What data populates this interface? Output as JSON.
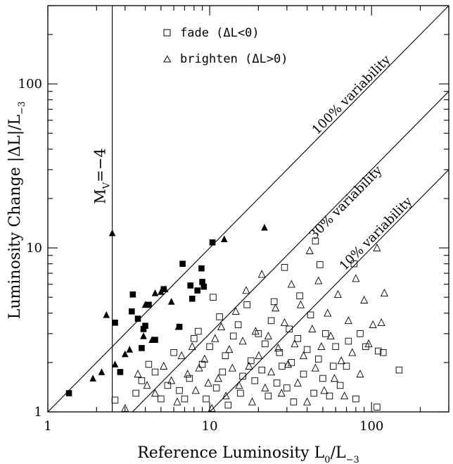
{
  "chart_data": {
    "type": "scatter",
    "xlabel": "Reference Luminosity L",
    "xlabel_sub": "0",
    "xlabel_tail": "/L",
    "xlabel_sub2": "−3",
    "ylabel": "Luminosity Change |ΔL|/L",
    "ylabel_sub": "−3",
    "xscale": "log",
    "yscale": "log",
    "xlim": [
      1,
      300
    ],
    "ylim": [
      1,
      300
    ],
    "x_ticks": [
      {
        "value": 1,
        "label": "1"
      },
      {
        "value": 10,
        "label": "10"
      },
      {
        "value": 100,
        "label": "100"
      }
    ],
    "y_ticks": [
      {
        "value": 1,
        "label": "1"
      },
      {
        "value": 10,
        "label": "10"
      },
      {
        "value": 100,
        "label": "100"
      }
    ],
    "legend": {
      "position": "top",
      "entries": [
        {
          "marker": "square-open",
          "label": "fade (ΔL<0)"
        },
        {
          "marker": "triangle-open",
          "label": "brighten (ΔL>0)"
        }
      ]
    },
    "reference_lines": [
      {
        "fraction": 1.0,
        "label": "100% variability"
      },
      {
        "fraction": 0.3,
        "label": "30% variability"
      },
      {
        "fraction": 0.1,
        "label": "10% variability"
      }
    ],
    "vertical_line": {
      "x": 2.5,
      "label": "M",
      "label_sub": "V",
      "label_tail": "=−4"
    },
    "series": [
      {
        "marker": "square-filled",
        "points": [
          [
            1.35,
            1.3
          ],
          [
            2.6,
            3.5
          ],
          [
            2.8,
            1.75
          ],
          [
            3.3,
            4.1
          ],
          [
            3.35,
            5.2
          ],
          [
            3.6,
            3.7
          ],
          [
            3.8,
            2.45
          ],
          [
            3.9,
            3.2
          ],
          [
            4.0,
            3.35
          ],
          [
            4.2,
            4.5
          ],
          [
            4.6,
            2.75
          ],
          [
            5.2,
            5.6
          ],
          [
            6.5,
            3.3
          ],
          [
            6.8,
            8.0
          ],
          [
            7.6,
            5.9
          ],
          [
            7.8,
            4.9
          ],
          [
            8.4,
            5.5
          ],
          [
            8.9,
            7.5
          ],
          [
            9.0,
            6.2
          ],
          [
            9.2,
            5.8
          ],
          [
            10.4,
            10.8
          ]
        ]
      },
      {
        "marker": "triangle-filled",
        "points": [
          [
            1.9,
            1.6
          ],
          [
            2.15,
            1.75
          ],
          [
            2.3,
            3.9
          ],
          [
            2.5,
            12.3
          ],
          [
            2.6,
            1.95
          ],
          [
            3.0,
            2.25
          ],
          [
            3.2,
            2.4
          ],
          [
            3.9,
            2.9
          ],
          [
            4.0,
            4.5
          ],
          [
            4.4,
            2.75
          ],
          [
            4.6,
            5.3
          ],
          [
            5.0,
            5.4
          ],
          [
            5.3,
            5.6
          ],
          [
            5.8,
            4.7
          ],
          [
            6.4,
            3.3
          ],
          [
            12.3,
            11.3
          ],
          [
            21.8,
            13.3
          ]
        ]
      },
      {
        "marker": "square-open",
        "points": [
          [
            2.6,
            1.18
          ],
          [
            3.5,
            1.3
          ],
          [
            3.8,
            1.55
          ],
          [
            4.2,
            1.95
          ],
          [
            4.6,
            1.75
          ],
          [
            5.0,
            1.2
          ],
          [
            5.5,
            1.45
          ],
          [
            6.0,
            2.3
          ],
          [
            6.5,
            1.35
          ],
          [
            7.0,
            1.2
          ],
          [
            7.5,
            1.6
          ],
          [
            8.0,
            2.8
          ],
          [
            8.5,
            3.1
          ],
          [
            9.0,
            1.95
          ],
          [
            9.5,
            1.2
          ],
          [
            10.0,
            2.5
          ],
          [
            10.5,
            5.0
          ],
          [
            11.0,
            1.4
          ],
          [
            11.5,
            3.8
          ],
          [
            12.0,
            1.75
          ],
          [
            12.5,
            2.2
          ],
          [
            13.0,
            1.1
          ],
          [
            14.0,
            2.9
          ],
          [
            15.0,
            3.4
          ],
          [
            15.5,
            1.3
          ],
          [
            16.0,
            1.65
          ],
          [
            17.0,
            4.5
          ],
          [
            18.0,
            2.05
          ],
          [
            19.0,
            1.55
          ],
          [
            20.0,
            3.0
          ],
          [
            21.0,
            1.8
          ],
          [
            22.0,
            2.6
          ],
          [
            23.0,
            1.25
          ],
          [
            24.0,
            3.6
          ],
          [
            25.0,
            4.7
          ],
          [
            26.0,
            1.5
          ],
          [
            27.0,
            2.3
          ],
          [
            28.0,
            1.9
          ],
          [
            29.0,
            7.6
          ],
          [
            30.0,
            1.4
          ],
          [
            31.0,
            3.2
          ],
          [
            32.0,
            2.0
          ],
          [
            33.0,
            1.15
          ],
          [
            35.0,
            2.8
          ],
          [
            36.0,
            5.1
          ],
          [
            38.0,
            1.7
          ],
          [
            40.0,
            2.4
          ],
          [
            42.0,
            3.9
          ],
          [
            44.0,
            1.3
          ],
          [
            45.0,
            11.0
          ],
          [
            47.0,
            2.1
          ],
          [
            48.0,
            7.9
          ],
          [
            50.0,
            1.6
          ],
          [
            52.0,
            3.0
          ],
          [
            55.0,
            1.25
          ],
          [
            58.0,
            1.9
          ],
          [
            60.0,
            2.5
          ],
          [
            64.0,
            1.45
          ],
          [
            70.0,
            1.9
          ],
          [
            72.0,
            2.7
          ],
          [
            78.0,
            8.0
          ],
          [
            80.0,
            1.2
          ],
          [
            85.0,
            3.0
          ],
          [
            92.0,
            2.5
          ],
          [
            110.0,
            2.35
          ],
          [
            118.0,
            2.3
          ],
          [
            148.0,
            1.8
          ],
          [
            108.0,
            1.07
          ]
        ]
      },
      {
        "marker": "triangle-open",
        "points": [
          [
            3.0,
            1.05
          ],
          [
            3.6,
            1.7
          ],
          [
            4.1,
            1.45
          ],
          [
            4.6,
            1.3
          ],
          [
            5.2,
            1.9
          ],
          [
            5.8,
            1.55
          ],
          [
            6.3,
            1.15
          ],
          [
            6.7,
            2.2
          ],
          [
            7.3,
            1.7
          ],
          [
            7.8,
            2.5
          ],
          [
            8.2,
            1.35
          ],
          [
            8.6,
            1.85
          ],
          [
            9.3,
            2.1
          ],
          [
            9.8,
            1.5
          ],
          [
            10.3,
            1.05
          ],
          [
            10.8,
            2.8
          ],
          [
            11.3,
            1.6
          ],
          [
            11.8,
            3.3
          ],
          [
            12.6,
            1.25
          ],
          [
            13.2,
            2.4
          ],
          [
            13.8,
            1.85
          ],
          [
            14.5,
            4.1
          ],
          [
            15.2,
            1.45
          ],
          [
            16.0,
            2.7
          ],
          [
            16.8,
            5.5
          ],
          [
            17.5,
            1.9
          ],
          [
            18.3,
            1.15
          ],
          [
            19.2,
            3.1
          ],
          [
            20.1,
            2.2
          ],
          [
            21.0,
            6.9
          ],
          [
            22.0,
            1.4
          ],
          [
            23.0,
            2.9
          ],
          [
            24.0,
            1.75
          ],
          [
            25.5,
            4.3
          ],
          [
            26.5,
            2.45
          ],
          [
            27.8,
            1.3
          ],
          [
            29.0,
            3.5
          ],
          [
            30.5,
            1.95
          ],
          [
            32.0,
            6.0
          ],
          [
            33.5,
            2.6
          ],
          [
            35.0,
            1.5
          ],
          [
            36.5,
            4.5
          ],
          [
            38.0,
            2.2
          ],
          [
            40.0,
            1.15
          ],
          [
            41.5,
            9.6
          ],
          [
            43.0,
            3.2
          ],
          [
            45.0,
            1.85
          ],
          [
            47.0,
            6.3
          ],
          [
            49.0,
            2.5
          ],
          [
            51.0,
            1.35
          ],
          [
            53.5,
            4.0
          ],
          [
            56.0,
            2.9
          ],
          [
            59.0,
            1.6
          ],
          [
            62.0,
            5.2
          ],
          [
            65.0,
            2.05
          ],
          [
            68.0,
            1.25
          ],
          [
            72.0,
            3.6
          ],
          [
            76.0,
            2.3
          ],
          [
            80.0,
            6.5
          ],
          [
            85.0,
            1.7
          ],
          [
            90.0,
            4.8
          ],
          [
            96.0,
            2.6
          ],
          [
            102.0,
            3.4
          ],
          [
            108.0,
            10.0
          ],
          [
            115.0,
            3.5
          ],
          [
            120.0,
            5.3
          ]
        ]
      }
    ]
  }
}
